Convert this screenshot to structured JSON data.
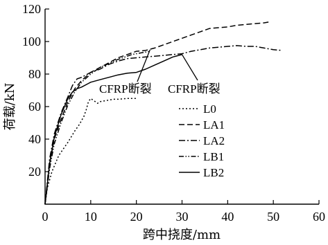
{
  "chart_data": {
    "type": "line",
    "title": "",
    "xlabel": "跨中挠度/mm",
    "ylabel": "荷载/kN",
    "xlim": [
      0,
      60
    ],
    "ylim": [
      0,
      120
    ],
    "x_ticks": [
      0,
      10,
      20,
      30,
      40,
      50,
      60
    ],
    "y_ticks": [
      20,
      40,
      60,
      80,
      100,
      120
    ],
    "grid": false,
    "legend_position": "center-right",
    "series": [
      {
        "name": "L0",
        "dash": "dotted",
        "x": [
          0,
          0.5,
          1.5,
          3,
          5,
          6.5,
          7.5,
          8.5,
          9,
          9.5,
          10,
          10.5,
          11,
          11.5,
          12,
          13,
          14,
          15,
          16,
          18,
          20
        ],
        "y": [
          0,
          10,
          20,
          30,
          38,
          45,
          49,
          54,
          58,
          63,
          65,
          64,
          63,
          62,
          63,
          63.5,
          64,
          64.5,
          64.5,
          65,
          65
        ]
      },
      {
        "name": "LA1",
        "dash": "dashed",
        "x": [
          0,
          1,
          2,
          3.5,
          5,
          6.5,
          8,
          10,
          12,
          14,
          16,
          18,
          20,
          22,
          24,
          26,
          28,
          30,
          32,
          34,
          36,
          38,
          40,
          42,
          44,
          46,
          48,
          49
        ],
        "y": [
          0,
          25,
          40,
          52,
          63,
          71,
          76,
          81,
          84,
          87,
          90,
          92,
          94,
          94.5,
          96,
          98,
          100,
          102,
          104,
          106,
          108,
          108.5,
          109,
          110,
          110.5,
          111,
          111.5,
          112
        ]
      },
      {
        "name": "LA2",
        "dash": "dashdot",
        "x": [
          0,
          1,
          2,
          3.5,
          5,
          6,
          7,
          8,
          10,
          12,
          14,
          16,
          18,
          20,
          22,
          24,
          26,
          28,
          30,
          32,
          34,
          36,
          38,
          40,
          42,
          44,
          46,
          48,
          50,
          52
        ],
        "y": [
          0,
          28,
          43,
          56,
          66,
          73,
          77,
          78,
          81,
          83,
          86,
          88,
          89.5,
          90,
          90.5,
          91,
          91.5,
          92,
          92.5,
          94,
          95,
          96,
          96.5,
          97,
          97.5,
          97,
          97,
          96,
          95,
          94.5
        ]
      },
      {
        "name": "LB1",
        "dash": "dashdotdot",
        "x": [
          0,
          1,
          2,
          3.5,
          5,
          6.5,
          8,
          10,
          12,
          14,
          16,
          18,
          19,
          20,
          21,
          22,
          23
        ],
        "y": [
          0,
          22,
          37,
          50,
          61,
          69,
          75,
          80,
          84,
          86.5,
          89,
          91,
          92,
          92.5,
          93,
          93.5,
          94
        ]
      },
      {
        "name": "LB2",
        "dash": "solid",
        "x": [
          0,
          1,
          2,
          3.5,
          5,
          6,
          7,
          8,
          10,
          12,
          14,
          16,
          18,
          20,
          22,
          24,
          26,
          28,
          30
        ],
        "y": [
          0,
          25,
          41,
          55,
          65,
          69,
          71,
          72,
          75,
          76.5,
          78,
          79.5,
          80.5,
          81,
          83,
          85.5,
          88,
          90.5,
          92
        ]
      }
    ],
    "annotations": [
      {
        "text": "CFRP断裂",
        "point": [
          23,
          95
        ]
      },
      {
        "text": "CFRP断裂",
        "point": [
          30,
          92
        ]
      }
    ]
  }
}
